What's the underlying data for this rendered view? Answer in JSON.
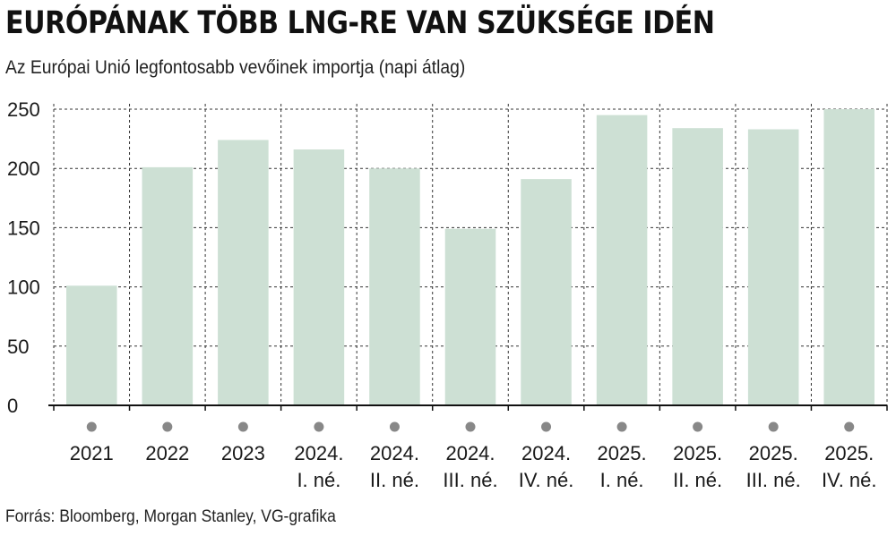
{
  "header": {
    "title": "EURÓPÁNAK TÖBB LNG-RE VAN SZÜKSÉGE IDÉN",
    "subtitle": "Az Európai Unió legfontosabb vevőinek importja (napi átlag)"
  },
  "footer": {
    "source": "Forrás: Bloomberg, Morgan Stanley, VG-grafika"
  },
  "colors": {
    "bar": "#cde0d4",
    "grid": "#333333",
    "marker": "#888888",
    "axis": "#111111"
  },
  "chart_data": {
    "type": "bar",
    "title": "EURÓPÁNAK TÖBB LNG-RE VAN SZÜKSÉGE IDÉN",
    "subtitle": "Az Európai Unió legfontosabb vevőinek importja (napi átlag)",
    "xlabel": "",
    "ylabel": "",
    "ylim": [
      0,
      250
    ],
    "yticks": [
      0,
      50,
      100,
      150,
      200,
      250
    ],
    "grid": true,
    "categories": [
      [
        "2021"
      ],
      [
        "2022"
      ],
      [
        "2023"
      ],
      [
        "2024.",
        "I. né."
      ],
      [
        "2024.",
        "II. né."
      ],
      [
        "2024.",
        "III. né."
      ],
      [
        "2024.",
        "IV. né."
      ],
      [
        "2025.",
        "I. né."
      ],
      [
        "2025.",
        "II. né."
      ],
      [
        "2025.",
        "III. né."
      ],
      [
        "2025.",
        "IV. né."
      ]
    ],
    "values": [
      101,
      201,
      224,
      216,
      200,
      149,
      191,
      245,
      234,
      233,
      250
    ]
  }
}
